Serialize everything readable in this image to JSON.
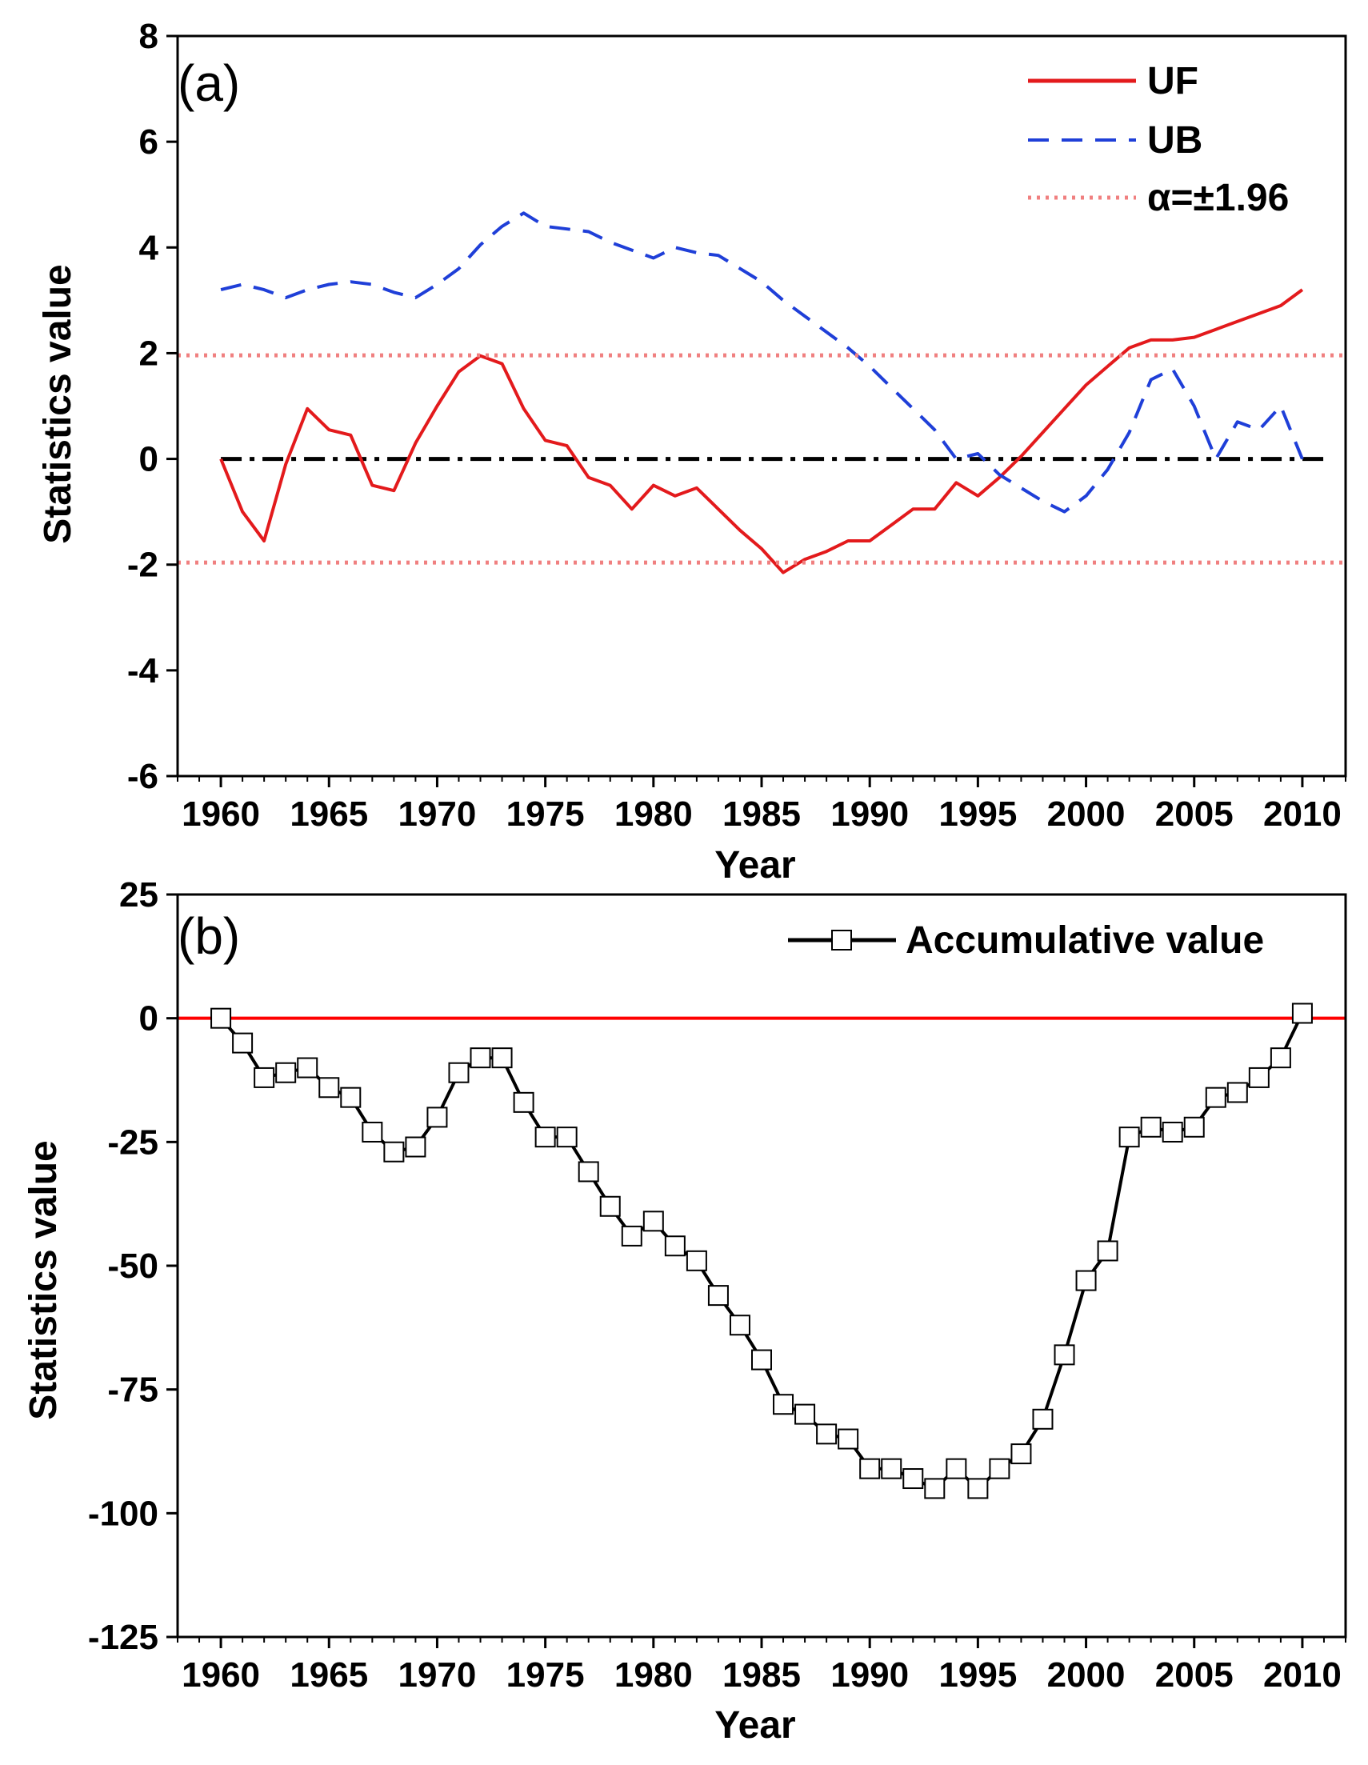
{
  "chart_data": [
    {
      "type": "line",
      "panel_label": "(a)",
      "xlabel": "Year",
      "ylabel": "Statistics value",
      "xlim": [
        1958,
        2012
      ],
      "ylim": [
        -6,
        8
      ],
      "xticks": [
        1960,
        1965,
        1970,
        1975,
        1980,
        1985,
        1990,
        1995,
        2000,
        2005,
        2010
      ],
      "yticks": [
        -6,
        -4,
        -2,
        0,
        2,
        4,
        6,
        8
      ],
      "zero_line": {
        "y": 0,
        "style": "dash-dot",
        "color": "#000000"
      },
      "legend_position": "top-right",
      "series": [
        {
          "name": "UF",
          "style": "solid",
          "color": "#e31a1c",
          "x": [
            1960,
            1961,
            1962,
            1963,
            1964,
            1965,
            1966,
            1967,
            1968,
            1969,
            1970,
            1971,
            1972,
            1973,
            1974,
            1975,
            1976,
            1977,
            1978,
            1979,
            1980,
            1981,
            1982,
            1983,
            1984,
            1985,
            1986,
            1987,
            1988,
            1989,
            1990,
            1991,
            1992,
            1993,
            1994,
            1995,
            1996,
            1997,
            1998,
            1999,
            2000,
            2001,
            2002,
            2003,
            2004,
            2005,
            2006,
            2007,
            2008,
            2009,
            2010
          ],
          "values": [
            0,
            -1.0,
            -1.55,
            -0.1,
            0.95,
            0.55,
            0.45,
            -0.5,
            -0.6,
            0.3,
            1.0,
            1.65,
            1.95,
            1.8,
            0.95,
            0.35,
            0.25,
            -0.35,
            -0.5,
            -0.95,
            -0.5,
            -0.7,
            -0.55,
            -0.95,
            -1.35,
            -1.7,
            -2.15,
            -1.9,
            -1.75,
            -1.55,
            -1.55,
            -1.25,
            -0.95,
            -0.95,
            -0.45,
            -0.7,
            -0.35,
            0.05,
            0.5,
            0.95,
            1.4,
            1.75,
            2.1,
            2.25,
            2.25,
            2.3,
            2.45,
            2.6,
            2.75,
            2.9,
            3.2
          ]
        },
        {
          "name": "UB",
          "style": "dashed",
          "color": "#1f3fd8",
          "x": [
            1960,
            1961,
            1962,
            1963,
            1964,
            1965,
            1966,
            1967,
            1968,
            1969,
            1970,
            1971,
            1972,
            1973,
            1974,
            1975,
            1976,
            1977,
            1978,
            1979,
            1980,
            1981,
            1982,
            1983,
            1984,
            1985,
            1986,
            1987,
            1988,
            1989,
            1990,
            1991,
            1992,
            1993,
            1994,
            1995,
            1996,
            1997,
            1998,
            1999,
            2000,
            2001,
            2002,
            2003,
            2004,
            2005,
            2006,
            2007,
            2008,
            2009,
            2010
          ],
          "values": [
            3.2,
            3.3,
            3.2,
            3.05,
            3.2,
            3.3,
            3.35,
            3.3,
            3.15,
            3.05,
            3.3,
            3.6,
            4.05,
            4.4,
            4.65,
            4.4,
            4.35,
            4.3,
            4.1,
            3.95,
            3.8,
            4.0,
            3.9,
            3.85,
            3.6,
            3.35,
            3.0,
            2.7,
            2.4,
            2.1,
            1.75,
            1.35,
            0.95,
            0.55,
            0.0,
            0.1,
            -0.3,
            -0.55,
            -0.8,
            -1.0,
            -0.7,
            -0.2,
            0.5,
            1.5,
            1.7,
            1.0,
            0.0,
            0.7,
            0.55,
            1.0,
            0.0
          ]
        },
        {
          "name": "α=±1.96",
          "style": "dotted",
          "color": "#f08080",
          "levels": [
            1.96,
            -1.96
          ]
        }
      ]
    },
    {
      "type": "line",
      "panel_label": "(b)",
      "xlabel": "Year",
      "ylabel": "Statistics value",
      "xlim": [
        1958,
        2012
      ],
      "ylim": [
        -125,
        25
      ],
      "xticks": [
        1960,
        1965,
        1970,
        1975,
        1980,
        1985,
        1990,
        1995,
        2000,
        2005,
        2010
      ],
      "yticks": [
        -125,
        -100,
        -75,
        -50,
        -25,
        0,
        25
      ],
      "zero_line": {
        "y": 0,
        "style": "solid",
        "color": "#ff0000"
      },
      "legend_position": "top-right",
      "series": [
        {
          "name": "Accumulative value",
          "style": "solid-with-square-markers",
          "color": "#000000",
          "x": [
            1960,
            1961,
            1962,
            1963,
            1964,
            1965,
            1966,
            1967,
            1968,
            1969,
            1970,
            1971,
            1972,
            1973,
            1974,
            1975,
            1976,
            1977,
            1978,
            1979,
            1980,
            1981,
            1982,
            1983,
            1984,
            1985,
            1986,
            1987,
            1988,
            1989,
            1990,
            1991,
            1992,
            1993,
            1994,
            1995,
            1996,
            1997,
            1998,
            1999,
            2000,
            2001,
            2002,
            2003,
            2004,
            2005,
            2006,
            2007,
            2008,
            2009,
            2010
          ],
          "values": [
            0,
            -5,
            -12,
            -11,
            -10,
            -14,
            -16,
            -23,
            -27,
            -26,
            -20,
            -11,
            -8,
            -8,
            -17,
            -24,
            -24,
            -31,
            -38,
            -44,
            -41,
            -46,
            -49,
            -56,
            -62,
            -69,
            -78,
            -80,
            -84,
            -85,
            -91,
            -91,
            -93,
            -95,
            -91,
            -95,
            -91,
            -88,
            -81,
            -68,
            -53,
            -47,
            -24,
            -22,
            -23,
            -22,
            -16,
            -15,
            -12,
            -8,
            1
          ]
        }
      ]
    }
  ]
}
